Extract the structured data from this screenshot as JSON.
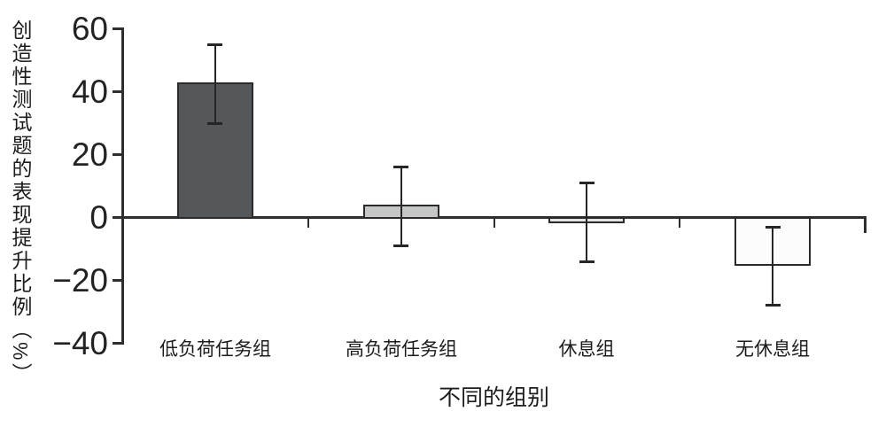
{
  "figure": {
    "background": "#ffffff"
  },
  "chart_data": {
    "type": "bar",
    "title": "",
    "xlabel": "不同的组别",
    "ylabel": "创造性测试题的表现提升比例（%）",
    "categories": [
      "低负荷任务组",
      "高负荷任务组",
      "休息组",
      "无休息组"
    ],
    "values": [
      43,
      4,
      -1.5,
      -15
    ],
    "error_bar_lower": [
      30,
      -9,
      -14,
      -28
    ],
    "error_bar_upper": [
      55,
      16,
      11,
      -3
    ],
    "bar_colors": [
      "#55585b",
      "#c5c7c7",
      "#e3e3e3",
      "#fcfcfc"
    ],
    "bar_border_color": "#2a2a2a",
    "axis_color": "#2e2e2e",
    "error_bar_color": "#262626",
    "text_color": "#1c1c1c",
    "ylim": [
      -40,
      60
    ],
    "y_ticks": [
      60,
      40,
      20,
      0,
      -20,
      -40
    ],
    "y_tick_labels": [
      "60",
      "40",
      "20",
      "0",
      "−20",
      "−40"
    ],
    "grid": false,
    "legend": null
  }
}
